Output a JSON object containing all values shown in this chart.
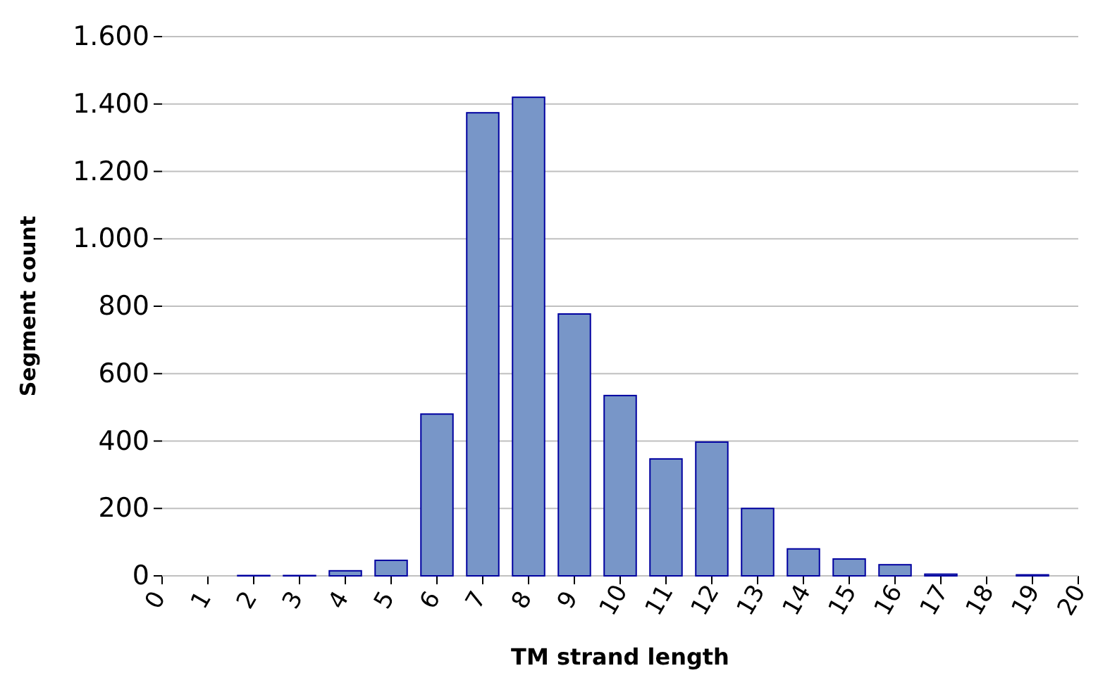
{
  "chart_data": {
    "type": "bar",
    "xlabel": "TM strand length",
    "ylabel": "Segment count",
    "x": [
      0,
      1,
      2,
      3,
      4,
      5,
      6,
      7,
      8,
      9,
      10,
      11,
      12,
      13,
      14,
      15,
      16,
      17,
      18,
      19,
      20
    ],
    "values": [
      0,
      0,
      1,
      1,
      15,
      46,
      480,
      1374,
      1420,
      777,
      535,
      347,
      397,
      200,
      80,
      50,
      33,
      5,
      0,
      3,
      0
    ],
    "color": "#7896c8",
    "xlim": [
      0,
      20
    ],
    "xticks": [
      0,
      1,
      2,
      3,
      4,
      5,
      6,
      7,
      8,
      9,
      10,
      11,
      12,
      13,
      14,
      15,
      16,
      17,
      18,
      19,
      20
    ],
    "ylim": [
      0,
      1600
    ],
    "yticks": [
      0,
      200,
      400,
      600,
      800,
      {
        "value": 1000,
        "label": "1.000"
      },
      {
        "value": 1200,
        "label": "1.200"
      },
      {
        "value": 1400,
        "label": "1.400"
      },
      {
        "value": 1600,
        "label": "1.600"
      }
    ],
    "grid": "y"
  }
}
